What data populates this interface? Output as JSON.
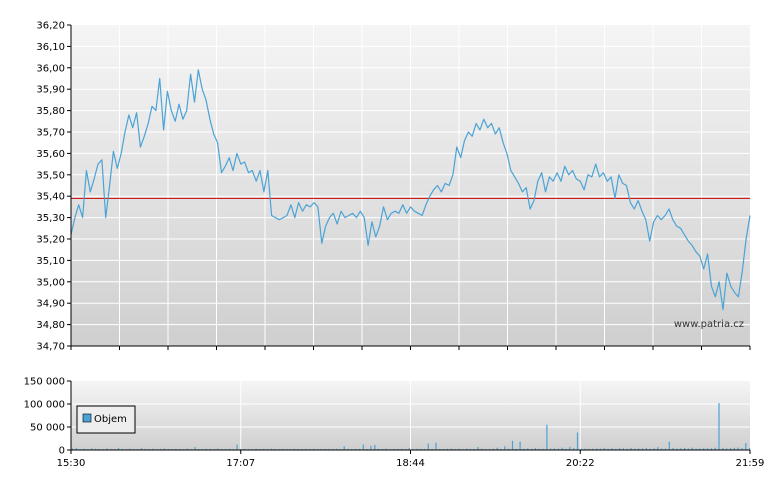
{
  "chart_data": [
    {
      "type": "line",
      "title": "",
      "xlabel": "",
      "ylabel": "",
      "ylim": [
        34.7,
        36.2
      ],
      "y_ticks": [
        "34,70",
        "34,80",
        "34,90",
        "35,00",
        "35,10",
        "35,20",
        "35,30",
        "35,40",
        "35,50",
        "35,60",
        "35,70",
        "35,80",
        "35,90",
        "36,00",
        "36,10",
        "36,20"
      ],
      "x_ticks": [],
      "reference_line": 35.39,
      "grid": true,
      "watermark": "www.patria.cz",
      "colors": {
        "line": "#4aa3d6",
        "reference": "#cc0000",
        "grid": "#ffffff"
      },
      "series": [
        {
          "values": [
            35.22,
            35.3,
            35.36,
            35.3,
            35.52,
            35.42,
            35.48,
            35.55,
            35.57,
            35.3,
            35.45,
            35.61,
            35.53,
            35.6,
            35.7,
            35.78,
            35.72,
            35.79,
            35.63,
            35.68,
            35.74,
            35.82,
            35.8,
            35.95,
            35.71,
            35.89,
            35.8,
            35.75,
            35.83,
            35.76,
            35.8,
            35.97,
            35.84,
            35.99,
            35.9,
            35.85,
            35.76,
            35.69,
            35.65,
            35.51,
            35.54,
            35.58,
            35.52,
            35.6,
            35.55,
            35.56,
            35.51,
            35.52,
            35.47,
            35.52,
            35.42,
            35.52,
            35.31,
            35.3,
            35.29,
            35.3,
            35.31,
            35.36,
            35.3,
            35.37,
            35.33,
            35.36,
            35.35,
            35.37,
            35.35,
            35.18,
            35.26,
            35.3,
            35.32,
            35.27,
            35.33,
            35.3,
            35.31,
            35.32,
            35.3,
            35.33,
            35.3,
            35.17,
            35.28,
            35.21,
            35.26,
            35.35,
            35.29,
            35.32,
            35.33,
            35.32,
            35.36,
            35.32,
            35.35,
            35.33,
            35.32,
            35.31,
            35.36,
            35.4,
            35.43,
            35.45,
            35.42,
            35.46,
            35.45,
            35.5,
            35.63,
            35.58,
            35.66,
            35.7,
            35.68,
            35.74,
            35.71,
            35.76,
            35.72,
            35.74,
            35.69,
            35.72,
            35.65,
            35.6,
            35.52,
            35.49,
            35.46,
            35.42,
            35.44,
            35.34,
            35.38,
            35.47,
            35.51,
            35.42,
            35.49,
            35.47,
            35.51,
            35.47,
            35.54,
            35.5,
            35.52,
            35.48,
            35.47,
            35.43,
            35.5,
            35.49,
            35.55,
            35.49,
            35.51,
            35.47,
            35.49,
            35.39,
            35.5,
            35.46,
            35.45,
            35.37,
            35.34,
            35.38,
            35.33,
            35.29,
            35.19,
            35.28,
            35.31,
            35.29,
            35.31,
            35.34,
            35.29,
            35.26,
            35.25,
            35.22,
            35.19,
            35.17,
            35.14,
            35.12,
            35.06,
            35.13,
            34.98,
            34.93,
            35.0,
            34.87,
            35.04,
            34.98,
            34.95,
            34.93,
            35.05,
            35.2,
            35.31
          ]
        }
      ]
    },
    {
      "type": "bar",
      "title": "",
      "xlabel": "",
      "ylabel": "",
      "ylim": [
        0,
        150000
      ],
      "y_ticks": [
        "0",
        "50 000",
        "100 000",
        "150 000"
      ],
      "x_ticks": [
        "15:30",
        "17:07",
        "18:44",
        "20:22",
        "21:59"
      ],
      "legend": "Objem",
      "legend_position": "top-left",
      "grid": true,
      "colors": {
        "bar": "#4aa3d6",
        "grid": "#ffffff"
      },
      "series": [
        {
          "name": "Objem",
          "values": [
            3000,
            4200,
            2100,
            2800,
            1900,
            3500,
            2600,
            2200,
            1800,
            3300,
            2500,
            2000,
            4100,
            2400,
            1700,
            2900,
            2100,
            1900,
            3800,
            2300,
            2000,
            2700,
            1800,
            2500,
            3100,
            2200,
            1900,
            2400,
            2100,
            1600,
            2800,
            2000,
            6500,
            2100,
            1900,
            2500,
            2300,
            1800,
            3000,
            2200,
            2000,
            2400,
            1900,
            12000,
            2100,
            2500,
            2200,
            1800,
            2600,
            1900,
            2300,
            2000,
            2800,
            2100,
            1700,
            2400,
            2000,
            1900,
            2500,
            2200,
            1800,
            2700,
            2100,
            2300,
            1900,
            2200,
            2400,
            2000,
            1800,
            2600,
            2100,
            8000,
            2300,
            1900,
            2500,
            2200,
            12000,
            2000,
            9000,
            11000,
            2400,
            2100,
            2800,
            1900,
            2200,
            2500,
            2300,
            2000,
            4000,
            2300,
            2600,
            2100,
            2000,
            14000,
            2400,
            16000,
            2200,
            1900,
            2500,
            3000,
            2200,
            2700,
            1900,
            3100,
            2300,
            2500,
            6500,
            2800,
            2100,
            2400,
            2900,
            5000,
            2200,
            8000,
            2600,
            20000,
            2400,
            18000,
            2700,
            3500,
            2300,
            4000,
            2600,
            2500,
            55000,
            2900,
            3200,
            2800,
            5000,
            2400,
            7000,
            4000,
            38000,
            2600,
            3000,
            2700,
            2900,
            3300,
            3100,
            4200,
            2800,
            3600,
            2500,
            3900,
            3400,
            2700,
            4500,
            3000,
            3200,
            3500,
            4100,
            2900,
            3700,
            6000,
            3300,
            2800,
            18000,
            4600,
            3100,
            3800,
            4400,
            3500,
            4900,
            2900,
            3200,
            4000,
            3800,
            3600,
            5000,
            102000,
            4200,
            3300,
            3900,
            4800,
            5200,
            3700,
            15000,
            4100
          ]
        }
      ]
    }
  ]
}
